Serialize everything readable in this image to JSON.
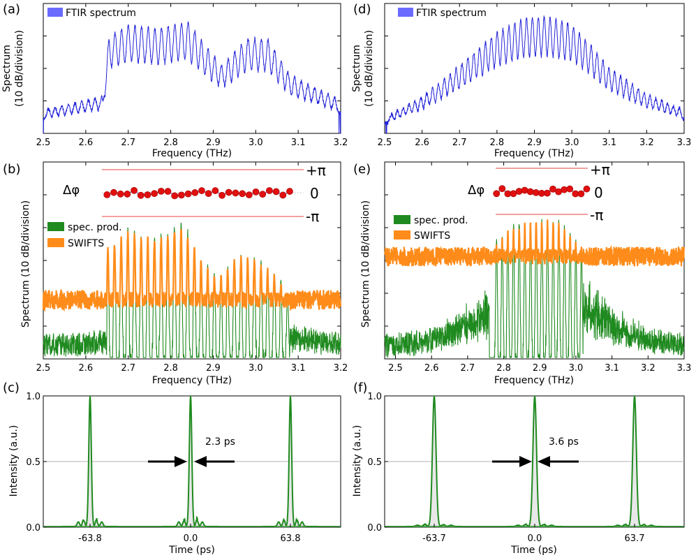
{
  "figure": {
    "colors": {
      "ftir": "#2323d8",
      "ftir_legend": "#6b6bff",
      "spec_prod": "#1f8a1f",
      "swifts": "#ff8c1a",
      "phase_line": "#f08080",
      "phase_dots": "#e01010",
      "phase_link": "#8a8ad8",
      "pulse": "#1f8a1f",
      "pulse_fill": "#e8e8e8",
      "half_line": "#b0b0b0"
    }
  },
  "chart_data": [
    {
      "id": "a",
      "panel_label": "(a)",
      "type": "line",
      "ylabel_line1": "Spectrum",
      "ylabel_line2": "(10 dB/division)",
      "xlabel": "Frequency (THz)",
      "xlim": [
        2.5,
        3.2
      ],
      "xticks": [
        "2.5",
        "2.6",
        "2.7",
        "2.8",
        "2.9",
        "3.0",
        "3.1",
        "3.2"
      ],
      "legend": [
        "FTIR spectrum"
      ],
      "comb": {
        "start": 2.512,
        "spacing": 0.01567,
        "count": 44,
        "envelope": [
          [
            2.5,
            0.18
          ],
          [
            2.64,
            0.28
          ],
          [
            2.655,
            0.75
          ],
          [
            2.7,
            0.83
          ],
          [
            2.77,
            0.8
          ],
          [
            2.84,
            0.86
          ],
          [
            2.88,
            0.68
          ],
          [
            2.92,
            0.52
          ],
          [
            2.98,
            0.73
          ],
          [
            3.03,
            0.72
          ],
          [
            3.08,
            0.45
          ],
          [
            3.2,
            0.25
          ]
        ]
      }
    },
    {
      "id": "b",
      "panel_label": "(b)",
      "type": "line",
      "ylabel": "Spectrum (10 dB/division)",
      "xlabel": "Frequency (THz)",
      "xlim": [
        2.5,
        3.2
      ],
      "xticks": [
        "2.5",
        "2.6",
        "2.7",
        "2.8",
        "2.9",
        "3.0",
        "3.1",
        "3.2"
      ],
      "legend": [
        "spec. prod.",
        "SWIFTS"
      ],
      "phase": {
        "label": "Δφ",
        "plus": "+π",
        "zero": "0",
        "minus": "-π",
        "x_range": [
          2.65,
          3.08
        ],
        "points": 28
      },
      "comb": {
        "start": 2.652,
        "spacing": 0.01567,
        "count": 28,
        "envelope": [
          [
            2.65,
            0.55
          ],
          [
            2.7,
            0.64
          ],
          [
            2.76,
            0.6
          ],
          [
            2.83,
            0.67
          ],
          [
            2.87,
            0.5
          ],
          [
            2.91,
            0.4
          ],
          [
            2.96,
            0.52
          ],
          [
            3.0,
            0.5
          ],
          [
            3.05,
            0.42
          ],
          [
            3.08,
            0.3
          ]
        ]
      }
    },
    {
      "id": "c",
      "panel_label": "(c)",
      "type": "line",
      "ylabel": "Intensity (a.u.)",
      "xlabel": "Time (ps)",
      "ylim": [
        0.0,
        1.0
      ],
      "yticks": [
        "0.0",
        "0.5",
        "1.0"
      ],
      "xticks": [
        "-63.8",
        "0.0",
        "63.8"
      ],
      "peaks": [
        -63.8,
        0.0,
        63.8
      ],
      "fwhm_label": "2.3 ps",
      "half_max": 0.5
    },
    {
      "id": "d",
      "panel_label": "(d)",
      "type": "line",
      "ylabel_line1": "Spectrum",
      "ylabel_line2": "(10 dB/division)",
      "xlabel": "Frequency (THz)",
      "xlim": [
        2.5,
        3.3
      ],
      "xticks": [
        "2.5",
        "2.6",
        "2.7",
        "2.8",
        "2.9",
        "3.0",
        "3.1",
        "3.2",
        "3.3"
      ],
      "legend": [
        "FTIR spectrum"
      ],
      "comb": {
        "start": 2.518,
        "spacing": 0.0157,
        "count": 50,
        "envelope": [
          [
            2.5,
            0.12
          ],
          [
            2.6,
            0.28
          ],
          [
            2.7,
            0.52
          ],
          [
            2.8,
            0.78
          ],
          [
            2.87,
            0.88
          ],
          [
            2.93,
            0.9
          ],
          [
            3.0,
            0.84
          ],
          [
            3.05,
            0.68
          ],
          [
            3.1,
            0.5
          ],
          [
            3.2,
            0.3
          ],
          [
            3.3,
            0.18
          ]
        ]
      }
    },
    {
      "id": "e",
      "panel_label": "(e)",
      "type": "line",
      "ylabel": "Spectrum (10 dB/division)",
      "xlabel": "Frequency (THz)",
      "xlim": [
        2.47,
        3.3
      ],
      "xticks": [
        "2.5",
        "2.6",
        "2.7",
        "2.8",
        "2.9",
        "3.0",
        "3.1",
        "3.2",
        "3.3"
      ],
      "legend": [
        "spec. prod.",
        "SWIFTS"
      ],
      "phase": {
        "label": "Δφ",
        "plus": "+π",
        "zero": "0",
        "minus": "-π",
        "x_range": [
          2.78,
          3.03
        ],
        "points": 17
      },
      "comb": {
        "start": 2.78,
        "spacing": 0.0157,
        "count": 17,
        "envelope": [
          [
            2.76,
            0.55
          ],
          [
            2.82,
            0.66
          ],
          [
            2.88,
            0.69
          ],
          [
            2.94,
            0.7
          ],
          [
            2.98,
            0.64
          ],
          [
            3.02,
            0.55
          ]
        ]
      }
    },
    {
      "id": "f",
      "panel_label": "(f)",
      "type": "line",
      "ylabel": "Intensity (a.u.)",
      "xlabel": "Time (ps)",
      "ylim": [
        0.0,
        1.0
      ],
      "yticks": [
        "0.0",
        "0.5",
        "1.0"
      ],
      "xticks": [
        "-63.7",
        "0.0",
        "63.7"
      ],
      "peaks": [
        -63.7,
        0.0,
        63.7
      ],
      "fwhm_label": "3.6 ps",
      "half_max": 0.5
    }
  ]
}
